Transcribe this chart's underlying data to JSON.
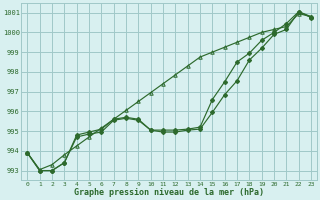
{
  "series1_x": [
    0,
    1,
    2,
    3,
    4,
    5,
    6,
    7,
    8,
    9,
    10,
    11,
    12,
    13,
    14,
    15,
    16,
    17,
    18,
    19,
    20,
    21,
    22,
    23
  ],
  "series1_y": [
    993.9,
    993.0,
    993.0,
    993.4,
    994.7,
    994.85,
    994.95,
    995.55,
    995.65,
    995.55,
    995.05,
    994.95,
    994.95,
    995.05,
    995.1,
    995.95,
    996.85,
    997.55,
    998.6,
    999.2,
    999.9,
    1000.15,
    1001.05,
    1000.75
  ],
  "series2_x": [
    0,
    1,
    2,
    3,
    4,
    5,
    6,
    7,
    8,
    9,
    10,
    11,
    12,
    13,
    14,
    15,
    16,
    17,
    18,
    19,
    20,
    21,
    22,
    23
  ],
  "series2_y": [
    993.9,
    993.0,
    993.0,
    993.4,
    994.8,
    994.95,
    995.1,
    995.6,
    995.7,
    995.6,
    995.05,
    995.05,
    995.05,
    995.1,
    995.2,
    996.6,
    997.5,
    998.5,
    998.95,
    999.6,
    1000.0,
    1000.45,
    1001.05,
    1000.8
  ],
  "series3_x": [
    0,
    1,
    2,
    3,
    4,
    5,
    6,
    7,
    8,
    9,
    10,
    11,
    12,
    13,
    14,
    15,
    16,
    17,
    18,
    19,
    20,
    21,
    22,
    23
  ],
  "series3_y": [
    993.9,
    993.05,
    993.3,
    993.8,
    994.25,
    994.7,
    995.15,
    995.6,
    996.05,
    996.5,
    996.95,
    997.4,
    997.85,
    998.3,
    998.75,
    999.0,
    999.25,
    999.5,
    999.75,
    1000.0,
    1000.15,
    1000.3,
    1000.95,
    1000.8
  ],
  "line_color": "#2d6a2d",
  "marker1": "D",
  "marker2": "P",
  "marker3": "+",
  "bg_color": "#d8f0f0",
  "grid_color": "#a0c8c8",
  "xlabel": "Graphe pression niveau de la mer (hPa)",
  "yticks": [
    993,
    994,
    995,
    996,
    997,
    998,
    999,
    1000,
    1001
  ],
  "xtick_labels": [
    "0",
    "1",
    "2",
    "3",
    "4",
    "5",
    "6",
    "7",
    "8",
    "9",
    "10",
    "11",
    "12",
    "13",
    "14",
    "15",
    "16",
    "17",
    "18",
    "19",
    "20",
    "21",
    "22",
    "23"
  ],
  "xticks": [
    0,
    1,
    2,
    3,
    4,
    5,
    6,
    7,
    8,
    9,
    10,
    11,
    12,
    13,
    14,
    15,
    16,
    17,
    18,
    19,
    20,
    21,
    22,
    23
  ],
  "ylim": [
    992.5,
    1001.5
  ],
  "xlim": [
    -0.5,
    23.5
  ],
  "figw": 3.2,
  "figh": 2.0,
  "dpi": 100
}
